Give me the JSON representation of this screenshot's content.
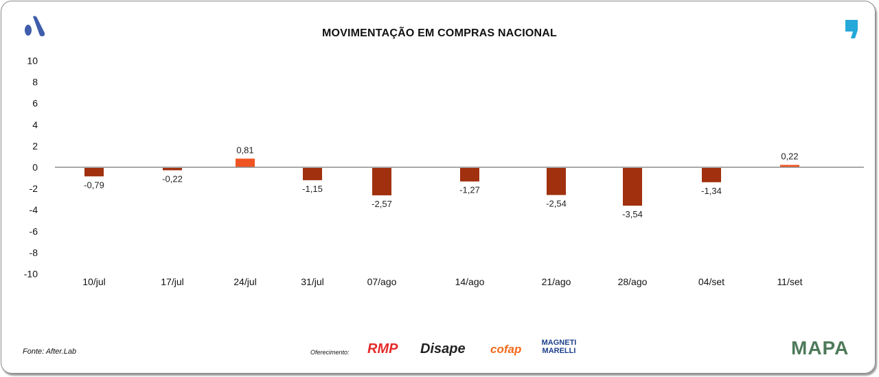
{
  "colors": {
    "positive": "#F05423",
    "negative": "#A0300E",
    "axis": "#8c8c8c",
    "brand_a": "#3F5DAA",
    "brand_quote": "#25A9DA"
  },
  "footer": {
    "source": "Fonte: After.Lab",
    "offered_by": "Oferecimento:",
    "sponsors": [
      "RMP",
      "Disape",
      "cofap",
      "MAGNETI MARELLI"
    ],
    "mapa_logo": "MAPA"
  },
  "chart_data": {
    "type": "bar",
    "title": "MOVIMENTAÇÃO EM COMPRAS NACIONAL",
    "categories": [
      "10/jul",
      "17/jul",
      "24/jul",
      "31/jul",
      "07/ago",
      "14/ago",
      "21/ago",
      "28/ago",
      "04/set",
      "11/set"
    ],
    "values": [
      -0.79,
      -0.22,
      0.81,
      -1.15,
      -2.57,
      -1.27,
      -2.54,
      -3.54,
      -1.34,
      0.22
    ],
    "data_labels": [
      "-0,79",
      "-0,22",
      "0,81",
      "-1,15",
      "-2,57",
      "-1,27",
      "-2,54",
      "-3,54",
      "-1,34",
      "0,22"
    ],
    "ylim": [
      -10,
      10
    ],
    "yticks": [
      10,
      8,
      6,
      4,
      2,
      0,
      -2,
      -4,
      -6,
      -8,
      -10
    ],
    "xlabel": "",
    "ylabel": "",
    "grid": false,
    "legend": "none"
  }
}
